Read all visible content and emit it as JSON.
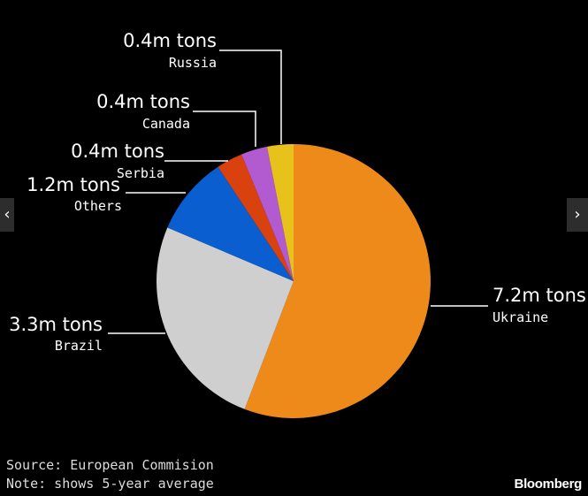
{
  "chart_data": {
    "type": "pie",
    "unit": "m tons",
    "slices": [
      {
        "label": "Ukraine",
        "value_label": "7.2m tons",
        "value": 7.2,
        "color": "#ee8a1a"
      },
      {
        "label": "Brazil",
        "value_label": "3.3m tons",
        "value": 3.3,
        "color": "#cfcfcf"
      },
      {
        "label": "Others",
        "value_label": "1.2m tons",
        "value": 1.2,
        "color": "#0a5ed0"
      },
      {
        "label": "Serbia",
        "value_label": "0.4m tons",
        "value": 0.4,
        "color": "#d9410f"
      },
      {
        "label": "Canada",
        "value_label": "0.4m tons",
        "value": 0.4,
        "color": "#b25bd0"
      },
      {
        "label": "Russia",
        "value_label": "0.4m tons",
        "value": 0.4,
        "color": "#e6c21a"
      }
    ]
  },
  "footer": {
    "source": "Source: European Commision",
    "note": "Note: shows 5-year average",
    "brand": "Bloomberg"
  },
  "nav": {
    "prev_icon": "‹",
    "next_icon": "›"
  }
}
